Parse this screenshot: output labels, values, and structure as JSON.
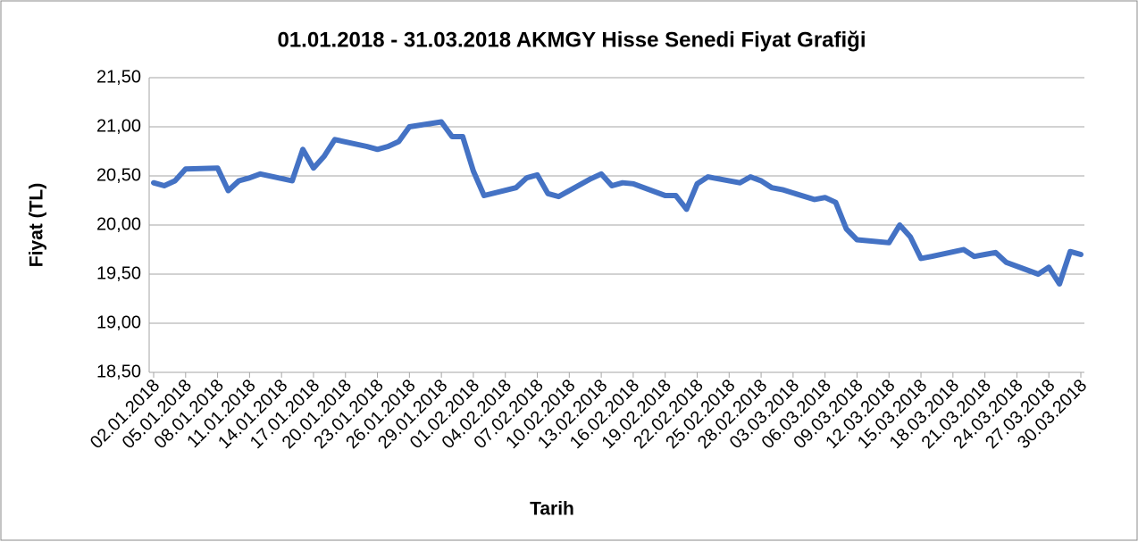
{
  "chart_data": {
    "type": "line",
    "title": "01.01.2018 - 31.03.2018 AKMGY Hisse Senedi Fiyat Grafiği",
    "ylabel": "Fiyat (TL)",
    "xlabel": "Tarih",
    "color": "#4472c4",
    "grid": true,
    "x": [
      "02.01.2018",
      "03.01.2018",
      "04.01.2018",
      "05.01.2018",
      "08.01.2018",
      "09.01.2018",
      "10.01.2018",
      "11.01.2018",
      "12.01.2018",
      "15.01.2018",
      "16.01.2018",
      "17.01.2018",
      "18.01.2018",
      "19.01.2018",
      "22.01.2018",
      "23.01.2018",
      "24.01.2018",
      "25.01.2018",
      "26.01.2018",
      "29.01.2018",
      "30.01.2018",
      "31.01.2018",
      "01.02.2018",
      "02.02.2018",
      "05.02.2018",
      "06.02.2018",
      "07.02.2018",
      "08.02.2018",
      "09.02.2018",
      "12.02.2018",
      "13.02.2018",
      "14.02.2018",
      "15.02.2018",
      "16.02.2018",
      "19.02.2018",
      "20.02.2018",
      "21.02.2018",
      "22.02.2018",
      "23.02.2018",
      "26.02.2018",
      "27.02.2018",
      "28.02.2018",
      "01.03.2018",
      "02.03.2018",
      "05.03.2018",
      "06.03.2018",
      "07.03.2018",
      "08.03.2018",
      "09.03.2018",
      "12.03.2018",
      "13.03.2018",
      "14.03.2018",
      "15.03.2018",
      "16.03.2018",
      "19.03.2018",
      "20.03.2018",
      "21.03.2018",
      "22.03.2018",
      "23.03.2018",
      "26.03.2018",
      "27.03.2018",
      "28.03.2018",
      "29.03.2018",
      "30.03.2018"
    ],
    "values": [
      20.43,
      20.4,
      20.45,
      20.57,
      20.58,
      20.35,
      20.45,
      20.48,
      20.52,
      20.45,
      20.77,
      20.58,
      20.7,
      20.87,
      20.8,
      20.77,
      20.8,
      20.85,
      21.0,
      21.05,
      20.9,
      20.9,
      20.55,
      20.3,
      20.38,
      20.48,
      20.51,
      20.32,
      20.29,
      20.47,
      20.52,
      20.4,
      20.43,
      20.42,
      20.3,
      20.3,
      20.16,
      20.42,
      20.49,
      20.43,
      20.49,
      20.45,
      20.38,
      20.36,
      20.26,
      20.28,
      20.23,
      19.96,
      19.85,
      19.82,
      20.0,
      19.88,
      19.66,
      19.68,
      19.75,
      19.68,
      19.7,
      19.72,
      19.62,
      19.5,
      19.57,
      19.4,
      19.73,
      19.7
    ],
    "xlim": [
      "02.01.2018",
      "30.03.2018"
    ],
    "xticks": [
      "02.01.2018",
      "05.01.2018",
      "08.01.2018",
      "11.01.2018",
      "14.01.2018",
      "17.01.2018",
      "20.01.2018",
      "23.01.2018",
      "26.01.2018",
      "29.01.2018",
      "01.02.2018",
      "04.02.2018",
      "07.02.2018",
      "10.02.2018",
      "13.02.2018",
      "16.02.2018",
      "19.02.2018",
      "22.02.2018",
      "25.02.2018",
      "28.02.2018",
      "03.03.2018",
      "06.03.2018",
      "09.03.2018",
      "12.03.2018",
      "15.03.2018",
      "18.03.2018",
      "21.03.2018",
      "24.03.2018",
      "27.03.2018",
      "30.03.2018"
    ],
    "ylim": [
      18.5,
      21.5
    ],
    "yticks": [
      {
        "value": 18.5,
        "label": "18,50"
      },
      {
        "value": 19,
        "label": "19,00"
      },
      {
        "value": 19.5,
        "label": "19,50"
      },
      {
        "value": 20,
        "label": "20,00"
      },
      {
        "value": 20.5,
        "label": "20,50"
      },
      {
        "value": 21,
        "label": "21,00"
      },
      {
        "value": 21.5,
        "label": "21,50"
      }
    ]
  }
}
